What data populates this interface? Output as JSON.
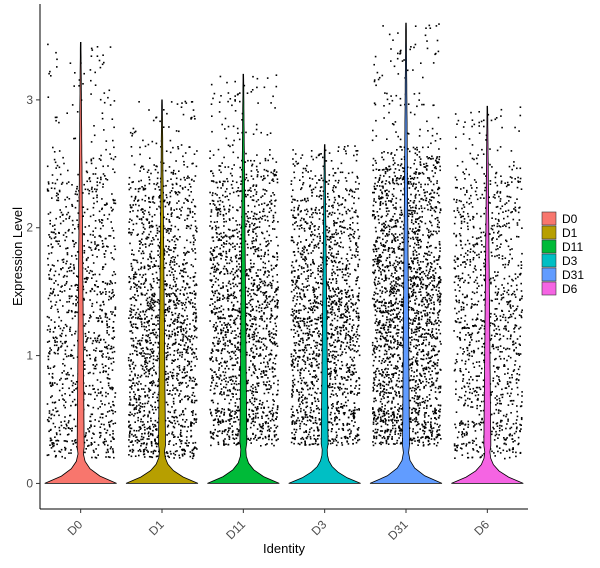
{
  "chart_data": {
    "type": "violin",
    "title": "",
    "xlabel": "Identity",
    "ylabel": "Expression Level",
    "ylim": [
      -0.2,
      3.75
    ],
    "y_ticks": [
      0,
      1,
      2,
      3
    ],
    "grid": false,
    "legend_position": "right",
    "categories": [
      "D0",
      "D1",
      "D11",
      "D3",
      "D31",
      "D6"
    ],
    "series": [
      {
        "name": "D0",
        "color": "#F8766D",
        "max": 3.45,
        "median": 0.0,
        "dense_range": [
          0.2,
          2.55
        ],
        "points_density": "medium"
      },
      {
        "name": "D1",
        "color": "#B79F00",
        "max": 3.0,
        "median": 0.0,
        "dense_range": [
          0.2,
          2.4
        ],
        "points_density": "high"
      },
      {
        "name": "D11",
        "color": "#00BA38",
        "max": 3.2,
        "median": 0.0,
        "dense_range": [
          0.3,
          2.45
        ],
        "points_density": "high"
      },
      {
        "name": "D3",
        "color": "#00BFC4",
        "max": 2.65,
        "median": 0.0,
        "dense_range": [
          0.3,
          2.3
        ],
        "points_density": "high"
      },
      {
        "name": "D31",
        "color": "#619CFF",
        "max": 3.6,
        "median": 0.0,
        "dense_range": [
          0.3,
          2.55
        ],
        "points_density": "very high"
      },
      {
        "name": "D6",
        "color": "#F564E3",
        "max": 2.95,
        "median": 0.0,
        "dense_range": [
          0.2,
          2.4
        ],
        "points_density": "medium"
      }
    ]
  }
}
